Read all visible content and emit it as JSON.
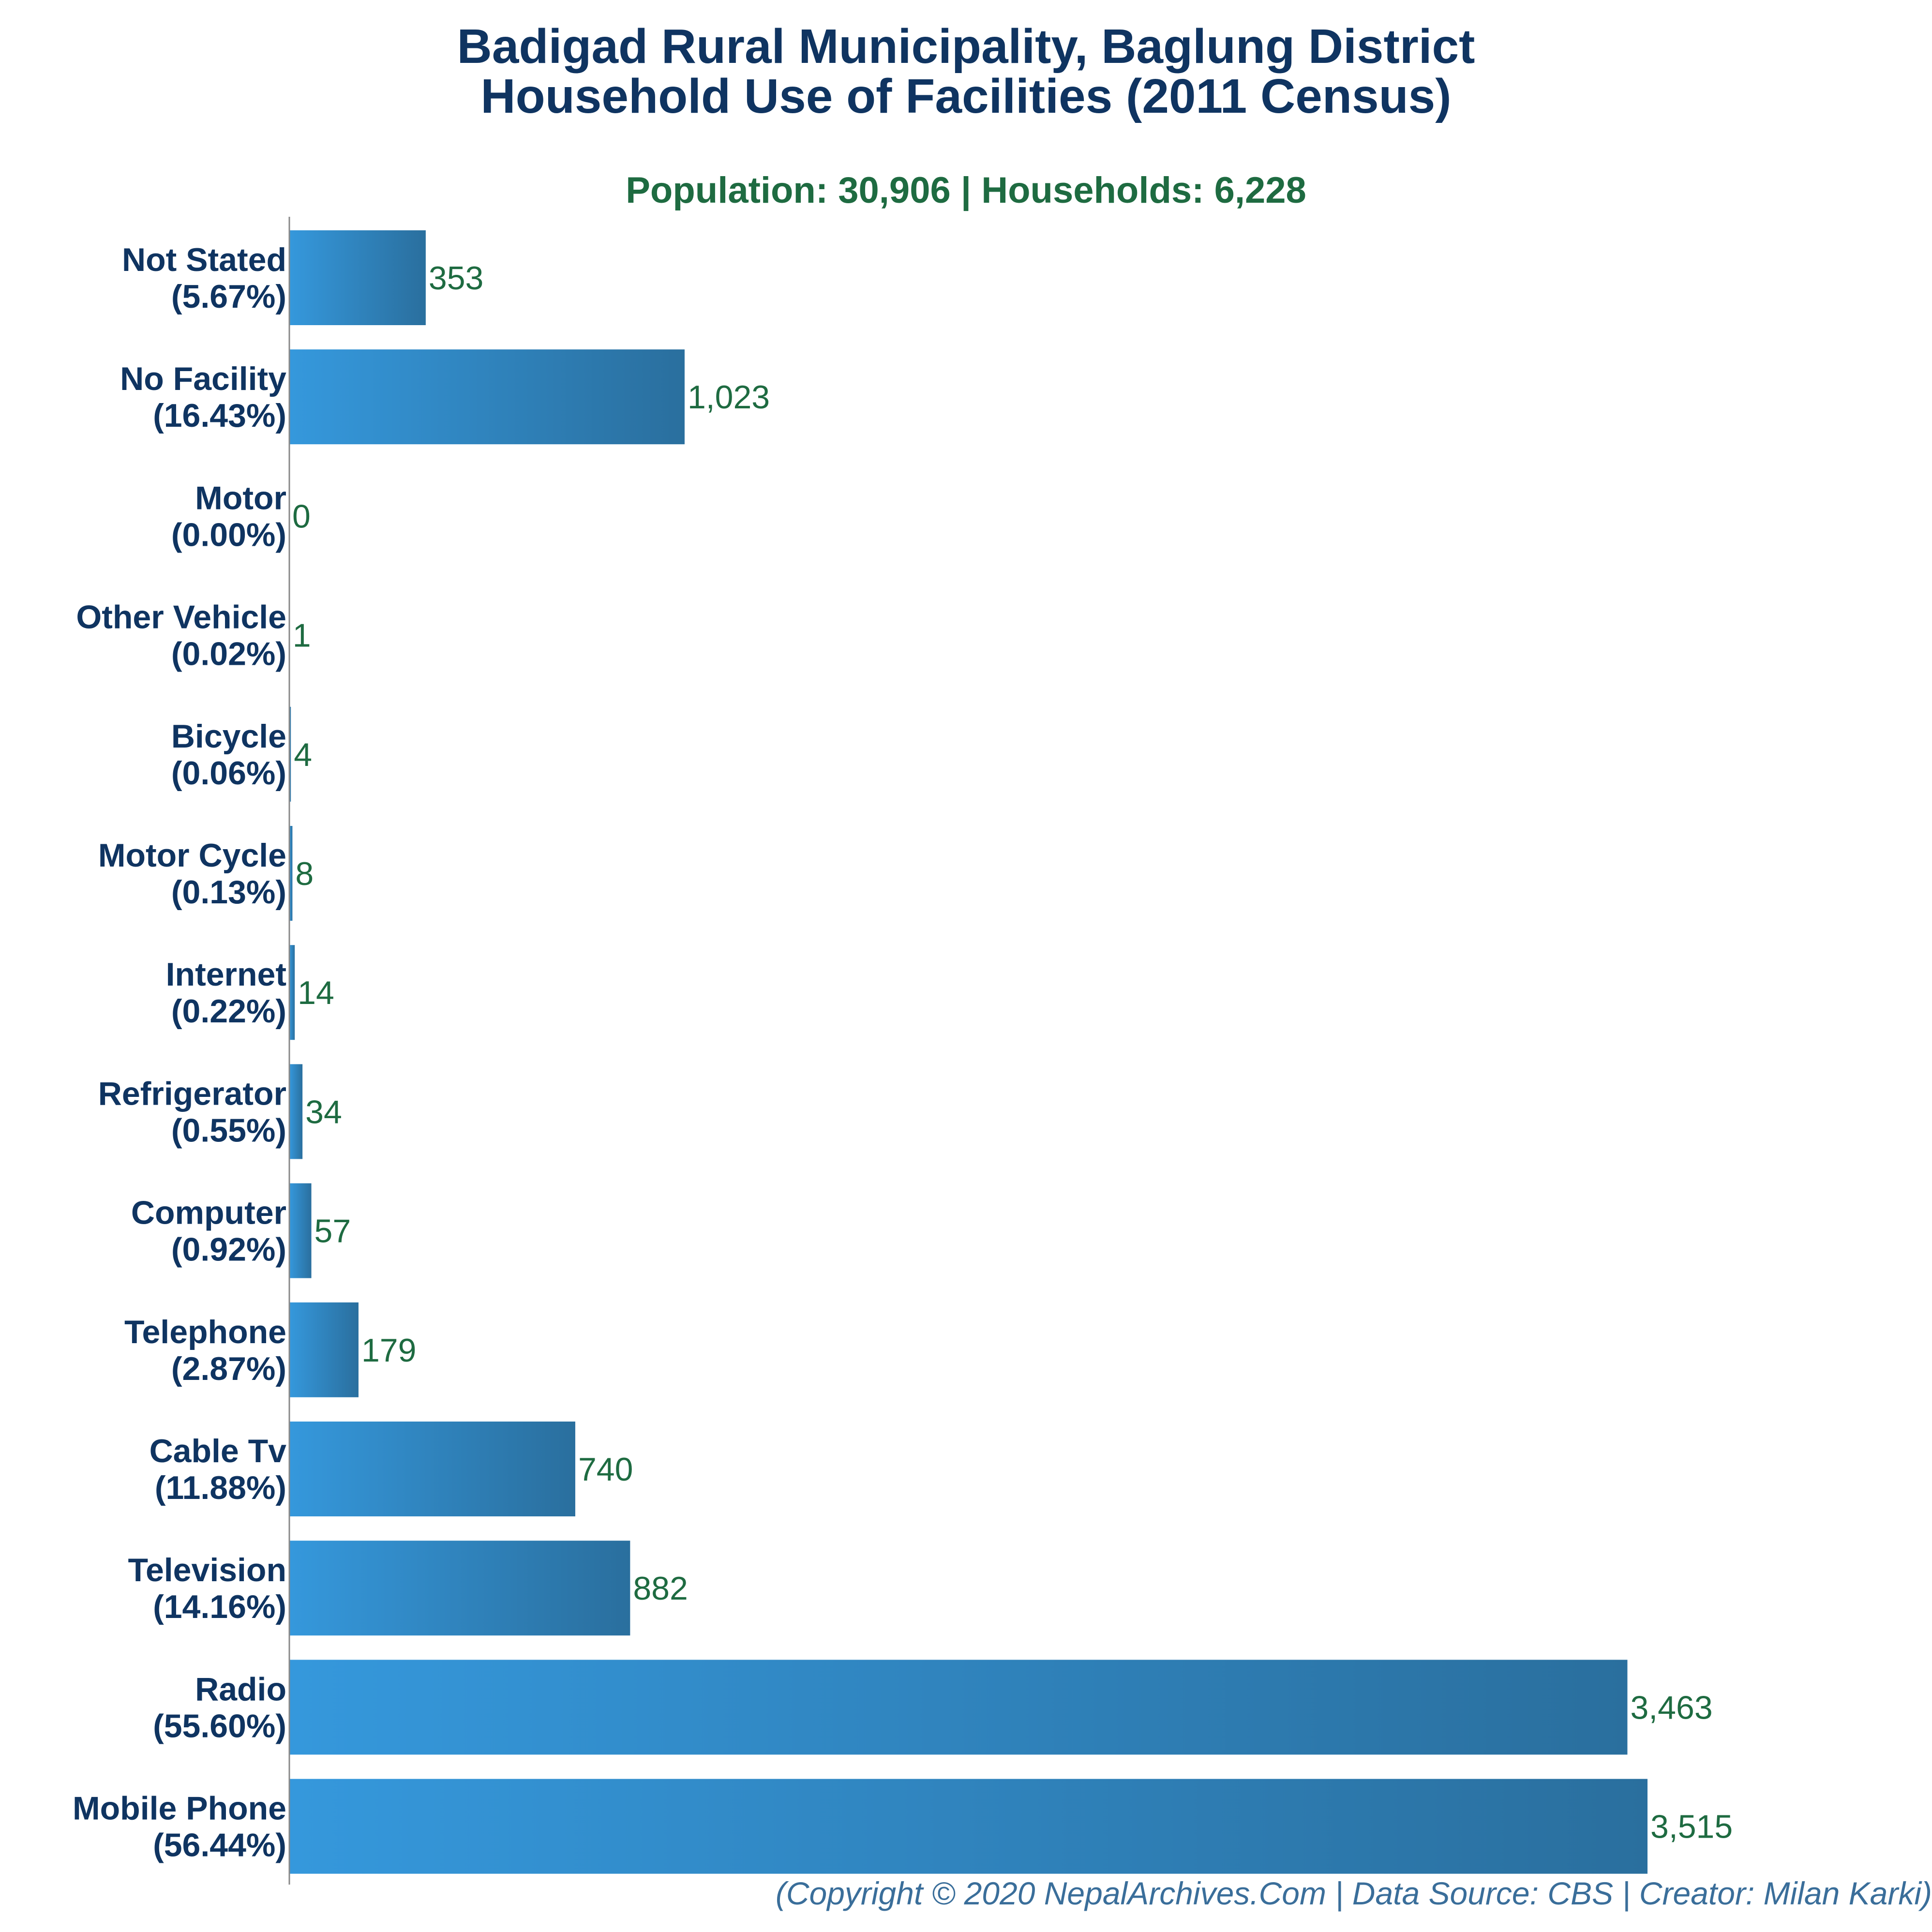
{
  "chart_data": {
    "type": "bar",
    "orientation": "horizontal",
    "title": "Badigad Rural Municipality, Baglung District",
    "title_line2": "Household Use of Facilities (2011 Census)",
    "subtitle": "Population: 30,906 | Households: 6,228",
    "categories": [
      "Not Stated",
      "No Facility",
      "Motor",
      "Other Vehicle",
      "Bicycle",
      "Motor Cycle",
      "Internet",
      "Refrigerator",
      "Computer",
      "Telephone",
      "Cable Tv",
      "Television",
      "Radio",
      "Mobile Phone"
    ],
    "percent_labels": [
      "(5.67%)",
      "(16.43%)",
      "(0.00%)",
      "(0.02%)",
      "(0.06%)",
      "(0.13%)",
      "(0.22%)",
      "(0.55%)",
      "(0.92%)",
      "(2.87%)",
      "(11.88%)",
      "(14.16%)",
      "(55.60%)",
      "(56.44%)"
    ],
    "values": [
      353,
      1023,
      0,
      1,
      4,
      8,
      14,
      34,
      57,
      179,
      740,
      882,
      3463,
      3515
    ],
    "value_labels": [
      "353",
      "1,023",
      "0",
      "1",
      "4",
      "8",
      "14",
      "34",
      "57",
      "179",
      "740",
      "882",
      "3,463",
      "3,515"
    ],
    "xlim": [
      0,
      3515
    ],
    "grid": false,
    "legend": "none"
  },
  "colors": {
    "title": "#0f3461",
    "subtitle": "#1e6b41",
    "category_label": "#0f3461",
    "value_label": "#1e6b41",
    "bar_light": "#3598dc",
    "bar_dark": "#2a6f9e",
    "axis": "#888888",
    "footer": "#3a6e9a"
  },
  "footer": "(Copyright © 2020 NepalArchives.Com | Data Source: CBS | Creator: Milan Karki)"
}
